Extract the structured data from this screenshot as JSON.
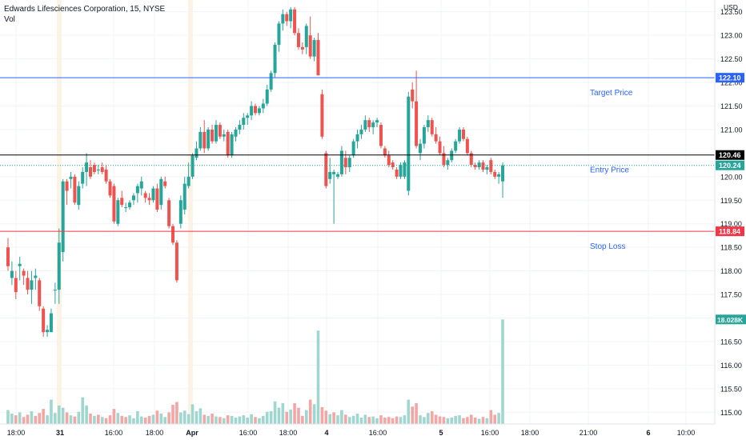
{
  "legend": {
    "title": "Edwards Lifesciences Corporation, 15, NYSE",
    "vol": "Vol"
  },
  "currency": "USD",
  "colors": {
    "up": "#26a69a",
    "down": "#ef5350",
    "vol_up": "#9fd6cf",
    "vol_down": "#f3a6a4",
    "target": "#2962ff",
    "stop": "#f23645",
    "entry": "#000000",
    "entry_dotted": "#26a69a",
    "annotation": "#2962ff",
    "session_shade": "#fff3e0"
  },
  "price_axis": {
    "ticks": [
      "123.50",
      "123.00",
      "122.50",
      "122.00",
      "121.50",
      "121.00",
      "120.50",
      "120.00",
      "119.50",
      "119.00",
      "118.50",
      "118.00",
      "117.50",
      "117.00",
      "116.50",
      "116.00",
      "115.50",
      "115.00"
    ]
  },
  "time_axis": {
    "ticks": [
      "18:00",
      "31",
      "16:00",
      "18:00",
      "Apr",
      "16:00",
      "18:00",
      "4",
      "16:00",
      "5",
      "16:00",
      "18:00",
      "21:00",
      "6",
      "10:00"
    ],
    "bold": [
      "31",
      "Apr",
      "4",
      "5",
      "6"
    ]
  },
  "levels": [
    {
      "name": "target",
      "label": "Target Price",
      "value": 122.1,
      "tag": "122.10"
    },
    {
      "name": "entry",
      "label": "Entry Price",
      "value": 120.46,
      "tag": "120.46"
    },
    {
      "name": "stop",
      "label": "Stop Loss",
      "value": 118.84,
      "tag": "118.84"
    }
  ],
  "last_price_tag": "120.24",
  "volume_tag": "18.028K",
  "chart_data": {
    "type": "candlestick",
    "title": "Edwards Lifesciences Corporation, 15, NYSE",
    "ylim": [
      114.75,
      123.75
    ],
    "candles": [
      [
        118.5,
        118.7,
        118.0,
        118.1
      ],
      [
        117.85,
        118.2,
        117.7,
        118.0
      ],
      [
        117.85,
        118.0,
        117.4,
        117.55
      ],
      [
        118.1,
        118.3,
        117.8,
        118.15
      ],
      [
        118.0,
        118.05,
        117.7,
        117.9
      ],
      [
        117.85,
        118.0,
        117.5,
        117.6
      ],
      [
        117.6,
        118.0,
        117.3,
        117.8
      ],
      [
        117.85,
        118.05,
        117.6,
        117.9
      ],
      [
        117.8,
        117.85,
        117.15,
        117.25
      ],
      [
        117.2,
        117.25,
        116.6,
        116.7
      ],
      [
        116.7,
        116.85,
        116.6,
        116.75
      ],
      [
        116.7,
        117.2,
        116.7,
        117.1
      ],
      [
        117.6,
        117.75,
        117.3,
        117.6
      ],
      [
        117.6,
        118.9,
        117.3,
        118.6
      ],
      [
        118.4,
        119.95,
        118.2,
        119.9
      ],
      [
        119.9,
        119.95,
        119.4,
        119.7
      ],
      [
        119.95,
        120.1,
        119.75,
        120.0
      ],
      [
        120.0,
        120.05,
        119.4,
        119.45
      ],
      [
        119.4,
        119.9,
        119.3,
        119.8
      ],
      [
        119.85,
        120.2,
        119.75,
        120.1
      ],
      [
        120.1,
        120.5,
        119.8,
        120.3
      ],
      [
        120.2,
        120.35,
        119.95,
        120.0
      ],
      [
        120.25,
        120.3,
        120.05,
        120.1
      ],
      [
        120.15,
        120.25,
        120.05,
        120.15
      ],
      [
        120.2,
        120.3,
        120.05,
        120.1
      ],
      [
        120.15,
        120.25,
        119.85,
        119.9
      ],
      [
        119.9,
        119.95,
        119.55,
        119.6
      ],
      [
        119.8,
        119.85,
        119.0,
        119.05
      ],
      [
        119.0,
        119.55,
        118.95,
        119.5
      ],
      [
        119.55,
        119.7,
        119.35,
        119.4
      ],
      [
        119.35,
        119.45,
        119.25,
        119.35
      ],
      [
        119.35,
        119.5,
        119.3,
        119.45
      ],
      [
        119.5,
        119.65,
        119.4,
        119.6
      ],
      [
        119.65,
        119.85,
        119.45,
        119.8
      ],
      [
        119.75,
        120.0,
        119.6,
        119.9
      ],
      [
        119.65,
        119.7,
        119.45,
        119.55
      ],
      [
        119.55,
        119.65,
        119.4,
        119.5
      ],
      [
        119.5,
        119.8,
        119.45,
        119.75
      ],
      [
        119.75,
        119.85,
        119.25,
        119.3
      ],
      [
        119.4,
        120.0,
        119.3,
        119.95
      ],
      [
        119.9,
        120.0,
        119.75,
        119.8
      ],
      [
        119.5,
        119.55,
        118.9,
        118.95
      ],
      [
        118.95,
        119.0,
        118.55,
        118.6
      ],
      [
        118.6,
        118.65,
        117.75,
        117.8
      ],
      [
        119.0,
        119.6,
        118.9,
        119.5
      ],
      [
        119.3,
        120.0,
        119.2,
        119.85
      ],
      [
        119.8,
        120.3,
        119.75,
        120.0
      ],
      [
        120.0,
        120.5,
        119.95,
        120.45
      ],
      [
        120.4,
        120.75,
        120.35,
        120.6
      ],
      [
        120.6,
        121.05,
        120.55,
        120.95
      ],
      [
        120.95,
        121.2,
        120.5,
        120.6
      ],
      [
        120.6,
        121.05,
        120.55,
        121.0
      ],
      [
        121.0,
        121.1,
        120.7,
        120.75
      ],
      [
        120.75,
        121.2,
        120.7,
        121.1
      ],
      [
        121.1,
        121.15,
        120.8,
        120.85
      ],
      [
        120.85,
        121.0,
        120.75,
        120.9
      ],
      [
        120.95,
        121.0,
        120.4,
        120.45
      ],
      [
        120.45,
        120.95,
        120.4,
        120.9
      ],
      [
        120.85,
        121.05,
        120.75,
        121.0
      ],
      [
        121.0,
        121.2,
        120.9,
        121.1
      ],
      [
        121.1,
        121.35,
        121.0,
        121.25
      ],
      [
        121.25,
        121.35,
        121.1,
        121.3
      ],
      [
        121.3,
        121.6,
        121.2,
        121.5
      ],
      [
        121.5,
        121.55,
        121.3,
        121.35
      ],
      [
        121.35,
        121.5,
        121.3,
        121.45
      ],
      [
        121.45,
        121.65,
        121.35,
        121.55
      ],
      [
        121.55,
        121.95,
        121.5,
        121.85
      ],
      [
        121.85,
        122.25,
        121.8,
        122.2
      ],
      [
        122.2,
        122.85,
        122.1,
        122.8
      ],
      [
        122.8,
        123.3,
        122.65,
        123.25
      ],
      [
        123.25,
        123.55,
        123.1,
        123.45
      ],
      [
        123.45,
        123.5,
        123.2,
        123.3
      ],
      [
        123.3,
        123.6,
        123.15,
        123.55
      ],
      [
        123.55,
        123.6,
        123.0,
        123.05
      ],
      [
        123.05,
        123.15,
        122.7,
        122.75
      ],
      [
        122.75,
        122.85,
        122.6,
        122.7
      ],
      [
        122.75,
        123.25,
        122.6,
        123.2
      ],
      [
        123.0,
        123.4,
        122.5,
        122.55
      ],
      [
        122.55,
        122.95,
        122.45,
        122.9
      ],
      [
        122.9,
        123.05,
        122.15,
        122.15
      ],
      [
        121.75,
        121.85,
        120.8,
        120.85
      ],
      [
        120.5,
        120.55,
        119.75,
        119.8
      ],
      [
        119.95,
        120.4,
        119.85,
        120.1
      ],
      [
        120.05,
        120.15,
        119.0,
        120.1
      ],
      [
        120.0,
        120.1,
        119.95,
        120.05
      ],
      [
        120.05,
        120.65,
        120.0,
        120.55
      ],
      [
        120.4,
        120.55,
        120.05,
        120.2
      ],
      [
        120.2,
        120.45,
        120.1,
        120.4
      ],
      [
        120.45,
        120.8,
        120.4,
        120.75
      ],
      [
        120.75,
        121.0,
        120.6,
        120.9
      ],
      [
        120.9,
        121.1,
        120.8,
        121.0
      ],
      [
        121.0,
        121.3,
        120.95,
        121.2
      ],
      [
        121.2,
        121.25,
        120.95,
        121.05
      ],
      [
        121.05,
        121.2,
        120.9,
        121.15
      ],
      [
        121.15,
        121.25,
        121.05,
        121.2
      ],
      [
        121.1,
        121.15,
        120.6,
        120.65
      ],
      [
        120.6,
        120.65,
        120.4,
        120.45
      ],
      [
        120.45,
        120.55,
        120.2,
        120.25
      ],
      [
        120.3,
        120.35,
        120.15,
        120.2
      ],
      [
        120.15,
        120.2,
        119.95,
        120.0
      ],
      [
        120.0,
        120.3,
        119.95,
        120.25
      ],
      [
        120.0,
        120.35,
        119.95,
        120.3
      ],
      [
        119.7,
        121.8,
        119.6,
        121.7
      ],
      [
        121.85,
        122.0,
        121.45,
        121.6
      ],
      [
        121.6,
        122.25,
        120.6,
        120.65
      ],
      [
        120.5,
        120.8,
        120.35,
        120.7
      ],
      [
        120.7,
        121.1,
        120.6,
        121.05
      ],
      [
        121.05,
        121.3,
        120.95,
        121.2
      ],
      [
        121.2,
        121.25,
        120.85,
        120.9
      ],
      [
        120.9,
        121.05,
        120.7,
        120.75
      ],
      [
        120.75,
        120.85,
        120.45,
        120.5
      ],
      [
        120.5,
        120.65,
        120.2,
        120.25
      ],
      [
        120.25,
        120.4,
        120.15,
        120.35
      ],
      [
        120.35,
        120.6,
        120.3,
        120.55
      ],
      [
        120.55,
        120.8,
        120.5,
        120.75
      ],
      [
        120.75,
        121.05,
        120.7,
        121.0
      ],
      [
        121.0,
        121.05,
        120.75,
        120.8
      ],
      [
        120.8,
        120.85,
        120.45,
        120.5
      ],
      [
        120.5,
        120.55,
        120.2,
        120.25
      ],
      [
        120.25,
        120.3,
        120.15,
        120.2
      ],
      [
        120.2,
        120.35,
        120.15,
        120.3
      ],
      [
        120.3,
        120.35,
        120.1,
        120.15
      ],
      [
        120.15,
        120.25,
        120.05,
        120.2
      ],
      [
        120.35,
        120.4,
        120.05,
        120.1
      ],
      [
        120.1,
        120.15,
        119.95,
        120.0
      ],
      [
        120.0,
        120.1,
        119.85,
        120.05
      ],
      [
        119.9,
        120.3,
        119.55,
        120.24
      ]
    ],
    "volume_ylim": [
      0,
      20000
    ],
    "volumes": [
      [
        2400,
        1
      ],
      [
        1800,
        1
      ],
      [
        1500,
        0
      ],
      [
        2000,
        1
      ],
      [
        1200,
        0
      ],
      [
        1600,
        0
      ],
      [
        2200,
        1
      ],
      [
        1400,
        0
      ],
      [
        1900,
        0
      ],
      [
        2600,
        0
      ],
      [
        1500,
        1
      ],
      [
        4200,
        1
      ],
      [
        1900,
        1
      ],
      [
        3200,
        1
      ],
      [
        2800,
        1
      ],
      [
        2000,
        0
      ],
      [
        1500,
        1
      ],
      [
        1300,
        0
      ],
      [
        2100,
        1
      ],
      [
        4600,
        1
      ],
      [
        3200,
        1
      ],
      [
        1800,
        0
      ],
      [
        1400,
        1
      ],
      [
        1600,
        0
      ],
      [
        1200,
        1
      ],
      [
        1000,
        0
      ],
      [
        1500,
        0
      ],
      [
        2600,
        0
      ],
      [
        1900,
        1
      ],
      [
        1400,
        0
      ],
      [
        1200,
        0
      ],
      [
        1500,
        1
      ],
      [
        1000,
        1
      ],
      [
        2200,
        1
      ],
      [
        1300,
        1
      ],
      [
        1100,
        0
      ],
      [
        1400,
        0
      ],
      [
        1600,
        1
      ],
      [
        2300,
        0
      ],
      [
        1800,
        1
      ],
      [
        1200,
        1
      ],
      [
        2000,
        0
      ],
      [
        3300,
        0
      ],
      [
        3800,
        0
      ],
      [
        2000,
        1
      ],
      [
        2300,
        1
      ],
      [
        1700,
        1
      ],
      [
        3400,
        1
      ],
      [
        2200,
        1
      ],
      [
        2700,
        1
      ],
      [
        1600,
        0
      ],
      [
        1400,
        1
      ],
      [
        1800,
        0
      ],
      [
        1300,
        1
      ],
      [
        1200,
        0
      ],
      [
        1000,
        1
      ],
      [
        1500,
        0
      ],
      [
        1400,
        1
      ],
      [
        1100,
        1
      ],
      [
        1300,
        1
      ],
      [
        1500,
        1
      ],
      [
        1100,
        1
      ],
      [
        1700,
        1
      ],
      [
        1200,
        0
      ],
      [
        1000,
        1
      ],
      [
        1400,
        1
      ],
      [
        2100,
        1
      ],
      [
        2200,
        1
      ],
      [
        3900,
        1
      ],
      [
        2800,
        1
      ],
      [
        3600,
        1
      ],
      [
        2100,
        0
      ],
      [
        2500,
        1
      ],
      [
        3600,
        0
      ],
      [
        2800,
        0
      ],
      [
        1400,
        0
      ],
      [
        2400,
        1
      ],
      [
        4200,
        0
      ],
      [
        3400,
        1
      ],
      [
        16100,
        1
      ],
      [
        2900,
        0
      ],
      [
        2300,
        0
      ],
      [
        1700,
        1
      ],
      [
        2000,
        0
      ],
      [
        1500,
        1
      ],
      [
        2400,
        1
      ],
      [
        1600,
        0
      ],
      [
        1200,
        1
      ],
      [
        1400,
        1
      ],
      [
        1800,
        1
      ],
      [
        1100,
        1
      ],
      [
        1600,
        1
      ],
      [
        1200,
        0
      ],
      [
        1300,
        1
      ],
      [
        1000,
        1
      ],
      [
        1500,
        0
      ],
      [
        1100,
        0
      ],
      [
        1200,
        0
      ],
      [
        1000,
        0
      ],
      [
        1300,
        0
      ],
      [
        1200,
        1
      ],
      [
        1500,
        1
      ],
      [
        4200,
        1
      ],
      [
        3000,
        0
      ],
      [
        3600,
        0
      ],
      [
        1500,
        1
      ],
      [
        1200,
        1
      ],
      [
        1900,
        1
      ],
      [
        2200,
        0
      ],
      [
        1600,
        0
      ],
      [
        1300,
        0
      ],
      [
        1200,
        0
      ],
      [
        1000,
        1
      ],
      [
        1100,
        1
      ],
      [
        1400,
        1
      ],
      [
        1500,
        1
      ],
      [
        1000,
        0
      ],
      [
        1200,
        0
      ],
      [
        1600,
        0
      ],
      [
        1100,
        0
      ],
      [
        900,
        1
      ],
      [
        1200,
        0
      ],
      [
        1000,
        1
      ],
      [
        2400,
        0
      ],
      [
        1600,
        0
      ],
      [
        1900,
        1
      ],
      [
        18028,
        1
      ]
    ]
  }
}
